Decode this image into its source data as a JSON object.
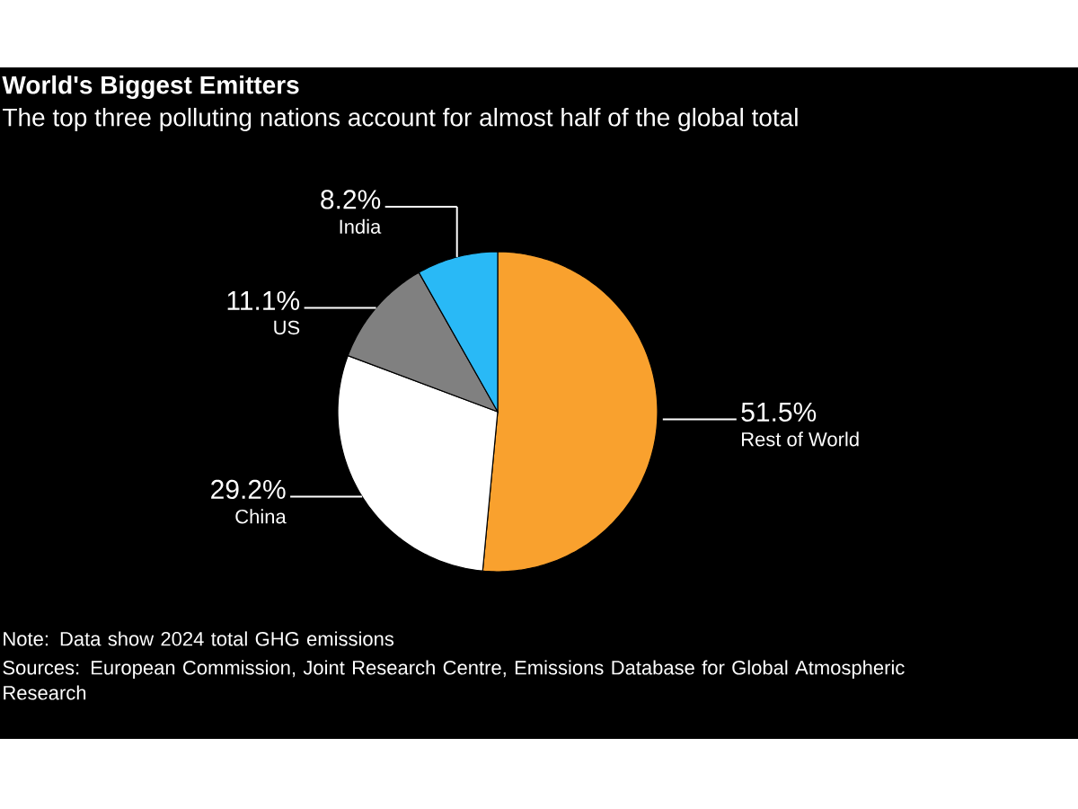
{
  "chart_data": {
    "type": "pie",
    "title": "World's Biggest Emitters",
    "subtitle": "The top three polluting nations account for almost half of the global total",
    "categories": [
      "Rest of World",
      "China",
      "US",
      "India"
    ],
    "values": [
      51.5,
      29.2,
      11.1,
      8.2
    ],
    "colors": [
      "#f9a12e",
      "#ffffff",
      "#808080",
      "#29b9f6"
    ],
    "value_labels": [
      "51.5%",
      "29.2%",
      "11.1%",
      "8.2%"
    ],
    "annotations": [
      "Note: Data show 2024 total GHG emissions",
      "Sources: European Commission, Joint Research Centre, Emissions Database for Global Atmospheric Research"
    ]
  }
}
